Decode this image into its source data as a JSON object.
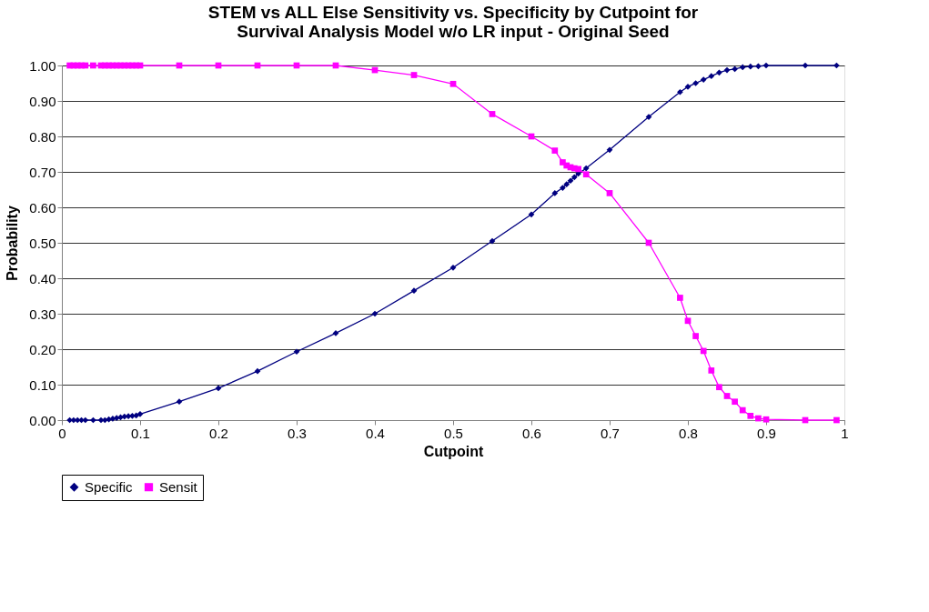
{
  "chart_data": {
    "type": "line",
    "title": "STEM vs ALL Else Sensitivity vs. Specificity by Cutpoint for Survival Analysis Model w/o LR input - Original Seed",
    "xlabel": "Cutpoint",
    "ylabel": "Probability",
    "x": [
      0.01,
      0.015,
      0.02,
      0.025,
      0.03,
      0.04,
      0.05,
      0.055,
      0.06,
      0.065,
      0.07,
      0.075,
      0.08,
      0.085,
      0.09,
      0.095,
      0.1,
      0.15,
      0.2,
      0.25,
      0.3,
      0.35,
      0.4,
      0.45,
      0.5,
      0.55,
      0.6,
      0.63,
      0.64,
      0.645,
      0.65,
      0.655,
      0.66,
      0.67,
      0.7,
      0.75,
      0.79,
      0.8,
      0.81,
      0.82,
      0.83,
      0.84,
      0.85,
      0.86,
      0.87,
      0.88,
      0.89,
      0.9,
      0.95,
      0.99
    ],
    "series": [
      {
        "name": "Specific",
        "color": "#000080",
        "marker": "diamond",
        "values": [
          0,
          0,
          0,
          0,
          0,
          0,
          0,
          0,
          0.002,
          0.004,
          0.006,
          0.008,
          0.01,
          0.011,
          0.012,
          0.013,
          0.017,
          0.052,
          0.09,
          0.138,
          0.193,
          0.245,
          0.3,
          0.365,
          0.43,
          0.505,
          0.58,
          0.64,
          0.655,
          0.665,
          0.675,
          0.685,
          0.695,
          0.71,
          0.762,
          0.855,
          0.925,
          0.94,
          0.95,
          0.96,
          0.97,
          0.98,
          0.987,
          0.99,
          0.995,
          0.997,
          0.998,
          1,
          1,
          1
        ]
      },
      {
        "name": "Sensit",
        "color": "#ff00ff",
        "marker": "square",
        "values": [
          1,
          1,
          1,
          1,
          1,
          1,
          1,
          1,
          1,
          1,
          1,
          1,
          1,
          1,
          1,
          1,
          1,
          1,
          1,
          1,
          1,
          1,
          0.987,
          0.973,
          0.948,
          0.863,
          0.8,
          0.76,
          0.727,
          0.718,
          0.713,
          0.71,
          0.708,
          0.693,
          0.64,
          0.5,
          0.345,
          0.28,
          0.237,
          0.195,
          0.14,
          0.093,
          0.068,
          0.052,
          0.028,
          0.012,
          0.005,
          0.002,
          0,
          0
        ]
      }
    ],
    "xlim": [
      0,
      1
    ],
    "xticks": [
      0,
      0.1,
      0.2,
      0.3,
      0.4,
      0.5,
      0.6,
      0.7,
      0.8,
      0.9,
      1
    ],
    "ylim": [
      0,
      1
    ],
    "yticks": [
      {
        "value": 0,
        "label": "0.00"
      },
      {
        "value": 0.1,
        "label": "0.10"
      },
      {
        "value": 0.2,
        "label": "0.20"
      },
      {
        "value": 0.3,
        "label": "0.30"
      },
      {
        "value": 0.4,
        "label": "0.40"
      },
      {
        "value": 0.5,
        "label": "0.50"
      },
      {
        "value": 0.6,
        "label": "0.60"
      },
      {
        "value": 0.7,
        "label": "0.70"
      },
      {
        "value": 0.8,
        "label": "0.80"
      },
      {
        "value": 0.9,
        "label": "0.90"
      },
      {
        "value": 1,
        "label": "1.00"
      }
    ],
    "grid": "y",
    "legend": "bottom",
    "line_style": "solid"
  }
}
